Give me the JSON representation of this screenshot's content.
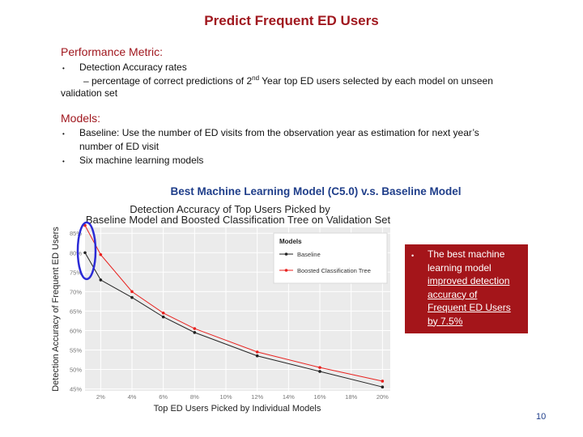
{
  "slide": {
    "title": "Predict Frequent ED Users",
    "page_number": "10"
  },
  "performance": {
    "heading": "Performance Metric:",
    "bullet": "Detection Accuracy rates",
    "line1_a": "– percentage of correct predictions of 2",
    "line1_sup": "nd",
    "line1_b": " Year top ED users selected by each model on unseen",
    "line2": "validation set"
  },
  "models": {
    "heading": "Models:",
    "bullet1_line1": "Baseline: Use the number of ED visits from the observation year as estimation for next year’s",
    "bullet1_line2": "number of ED visit",
    "bullet2": "Six machine learning models"
  },
  "chart_heading": "Best Machine Learning Model (C5.0) v.s. Baseline Model",
  "callout": {
    "line1": "The best machine",
    "line2": "learning model",
    "line3": "improved detection",
    "line4": "accuracy of",
    "line5": "Frequent ED Users",
    "line6": "by 7.5%"
  },
  "colors": {
    "accent_red": "#a0171e",
    "heading_blue": "#1f3e8a",
    "series_baseline": "#222222",
    "series_boosted": "#e8221f",
    "highlight_ellipse": "#2b2bd6"
  },
  "chart_data": {
    "type": "line",
    "title": "Detection Accuracy of Top Users Picked by Baseline Model and Boosted Classification Tree on Validation Set",
    "title_line1": "Detection Accuracy of Top Users Picked by",
    "title_line2": "Baseline Model and Boosted Classification Tree on Validation Set",
    "xlabel": "Top ED Users Picked by Individual Models",
    "ylabel": "Detection Accuracy of Frequent ED Users",
    "x_ticks": [
      "2%",
      "4%",
      "6%",
      "8%",
      "10%",
      "12%",
      "14%",
      "16%",
      "18%",
      "20%"
    ],
    "y_ticks": [
      "45%",
      "50%",
      "55%",
      "60%",
      "65%",
      "70%",
      "75%",
      "80%",
      "85%"
    ],
    "xlim": [
      1,
      20.5
    ],
    "ylim": [
      44.5,
      86.5
    ],
    "legend_title": "Models",
    "legend_position": "top-right",
    "grid": true,
    "series": [
      {
        "name": "Baseline",
        "x": [
          1,
          2,
          4,
          6,
          8,
          12,
          16,
          20
        ],
        "y": [
          80,
          73,
          68.5,
          63.5,
          59.5,
          53.5,
          49.5,
          45.5
        ]
      },
      {
        "name": "Boosted Classification Tree",
        "x": [
          1,
          2,
          4,
          6,
          8,
          12,
          16,
          20
        ],
        "y": [
          87,
          79.5,
          70,
          64.5,
          60.5,
          54.5,
          50.5,
          47
        ]
      }
    ]
  }
}
